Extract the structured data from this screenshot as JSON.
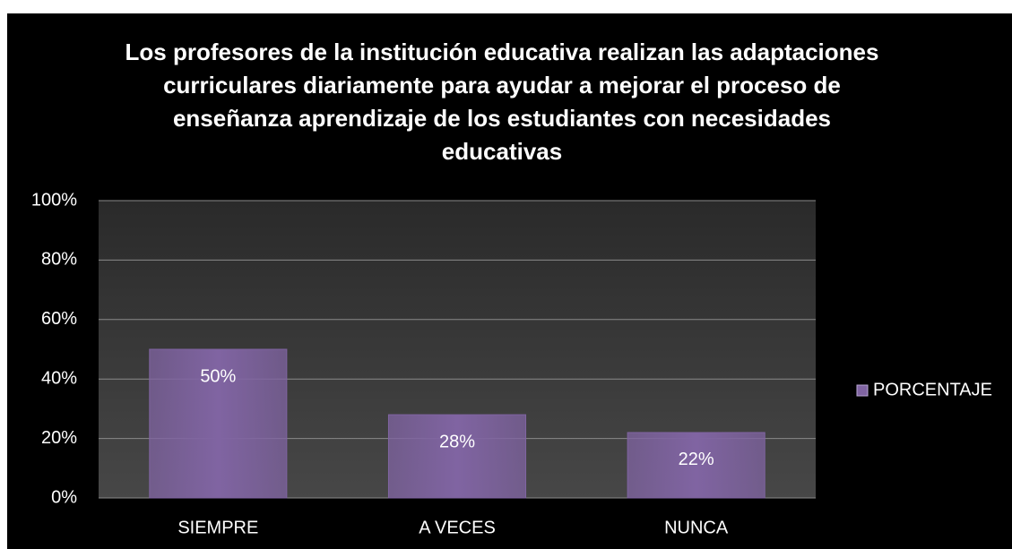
{
  "chart_data": {
    "type": "bar",
    "title": "Los profesores de la institución educativa realizan las adaptaciones curriculares diariamente para ayudar a mejorar el proceso de enseñanza aprendizaje de los estudiantes con necesidades educativas",
    "categories": [
      "SIEMPRE",
      "A VECES",
      "NUNCA"
    ],
    "series": [
      {
        "name": "PORCENTAJE",
        "color": "#8064a2",
        "values": [
          50,
          28,
          22
        ],
        "value_labels": [
          "50%",
          "28%",
          "22%"
        ]
      }
    ],
    "ylim": [
      0,
      100
    ],
    "yticks": [
      {
        "value": 0,
        "label": "0%"
      },
      {
        "value": 20,
        "label": "20%"
      },
      {
        "value": 40,
        "label": "40%"
      },
      {
        "value": 60,
        "label": "60%"
      },
      {
        "value": 80,
        "label": "80%"
      },
      {
        "value": 100,
        "label": "100%"
      }
    ],
    "grid": true,
    "legend": "right"
  }
}
